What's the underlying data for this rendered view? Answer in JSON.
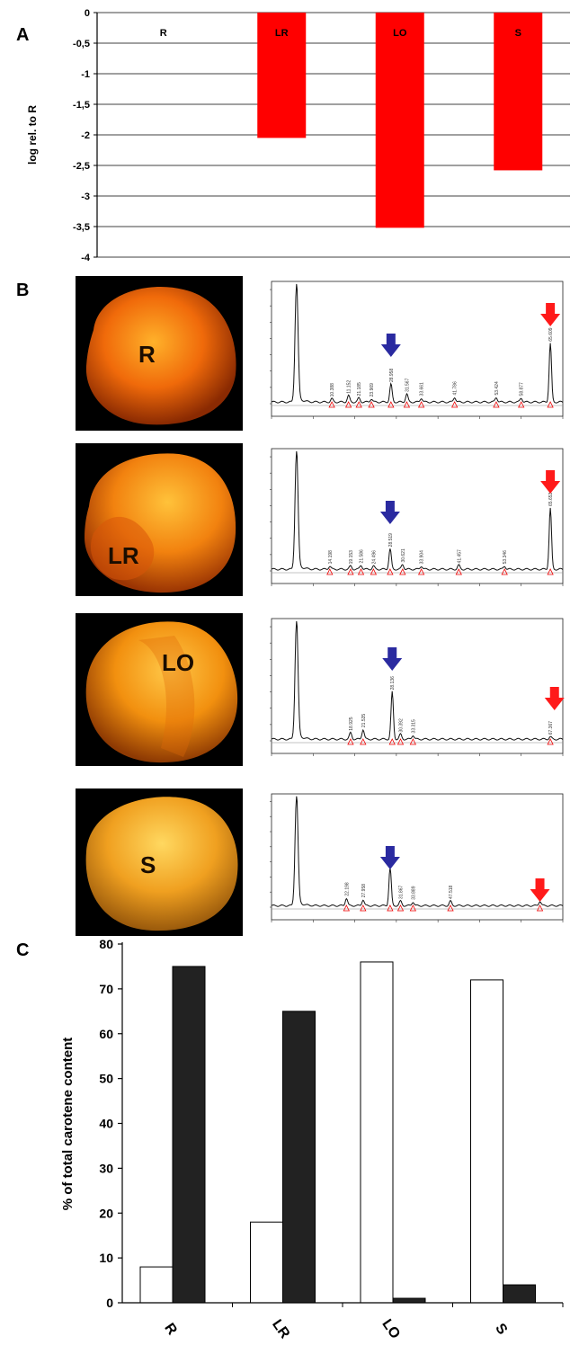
{
  "panels": {
    "a": "A",
    "b": "B",
    "c": "C"
  },
  "chart_a": {
    "type": "bar",
    "ylabel": "log rel. to R",
    "ylim": [
      -4,
      0
    ],
    "yticks": [
      "0",
      "-0,5",
      "-1",
      "-1,5",
      "-2",
      "-2,5",
      "-3",
      "-3,5",
      "-4"
    ],
    "categories": [
      "R",
      "LR",
      "LO",
      "S"
    ],
    "values": [
      0,
      -2.05,
      -3.52,
      -2.58
    ],
    "bar_color": "#ff0000",
    "grid": true
  },
  "photos": [
    {
      "label": "R",
      "colors": [
        "#ffab20",
        "#f06a0a",
        "#b83a04"
      ]
    },
    {
      "label": "LR",
      "colors": [
        "#ffb52a",
        "#f2820f",
        "#c04a05"
      ]
    },
    {
      "label": "LO",
      "colors": [
        "#ffc040",
        "#f2900f",
        "#b85004"
      ]
    },
    {
      "label": "S",
      "colors": [
        "#ffcf55",
        "#f0a020",
        "#b86f10"
      ]
    }
  ],
  "chromatograms": [
    {
      "peaks": [
        [
          6.0,
          1.45
        ],
        [
          14.5,
          0.04
        ],
        [
          18.5,
          0.08
        ],
        [
          21.0,
          0.05
        ],
        [
          24.0,
          0.04
        ],
        [
          28.7,
          0.22
        ],
        [
          32.5,
          0.1
        ],
        [
          36.0,
          0.05
        ],
        [
          44.0,
          0.06
        ],
        [
          54.0,
          0.06
        ],
        [
          60.0,
          0.05
        ],
        [
          67.0,
          0.72
        ]
      ],
      "labels": [
        "10.388",
        "11.152",
        "21.185",
        "23.969",
        "28.958",
        "31.567",
        "33.661",
        "41.786",
        "53.424",
        "58.877",
        "65.609"
      ],
      "blue_arrow": 28.7,
      "red_arrow": 67.0
    },
    {
      "peaks": [
        [
          6.0,
          1.45
        ],
        [
          14.0,
          0.04
        ],
        [
          19.0,
          0.04
        ],
        [
          21.5,
          0.05
        ],
        [
          24.5,
          0.04
        ],
        [
          28.5,
          0.25
        ],
        [
          31.5,
          0.06
        ],
        [
          36.0,
          0.04
        ],
        [
          45.0,
          0.05
        ],
        [
          56.0,
          0.04
        ],
        [
          67.0,
          0.75
        ]
      ],
      "labels": [
        "14.198",
        "19.153",
        "21.586",
        "24.496",
        "28.519",
        "30.621",
        "33.904",
        "41.457",
        "53.346",
        "65.653"
      ],
      "blue_arrow": 28.5,
      "red_arrow": 67.0
    },
    {
      "peaks": [
        [
          6.0,
          1.45
        ],
        [
          19.0,
          0.08
        ],
        [
          22.0,
          0.12
        ],
        [
          29.0,
          0.58
        ],
        [
          31.0,
          0.06
        ],
        [
          34.0,
          0.05
        ],
        [
          67.0,
          0.03
        ]
      ],
      "labels": [
        "18.925",
        "21.535",
        "28.136",
        "30.392",
        "33.315",
        "67.367"
      ],
      "blue_arrow": 29.0,
      "red_arrow": 68.0
    },
    {
      "peaks": [
        [
          6.0,
          1.45
        ],
        [
          18.0,
          0.1
        ],
        [
          22.0,
          0.08
        ],
        [
          28.5,
          0.5
        ],
        [
          31.0,
          0.06
        ],
        [
          34.0,
          0.05
        ],
        [
          43.0,
          0.06
        ],
        [
          64.5,
          0.06
        ]
      ],
      "labels": [
        "22.198",
        "27.958",
        "28.813",
        "31.867",
        "33.889",
        "47.518",
        "66.353"
      ],
      "blue_arrow": 28.5,
      "red_arrow": 64.5
    }
  ],
  "chart_c": {
    "type": "bar",
    "ylabel": "% of total carotene content",
    "ylim": [
      0,
      80
    ],
    "yticks": [
      0,
      10,
      20,
      30,
      40,
      50,
      60,
      70,
      80
    ],
    "categories": [
      "R",
      "LR",
      "LO",
      "S"
    ],
    "series": [
      {
        "values": [
          8,
          18,
          76,
          72
        ],
        "fill": "#ffffff"
      },
      {
        "values": [
          75,
          65,
          1,
          4
        ],
        "fill": "#222222"
      }
    ]
  }
}
